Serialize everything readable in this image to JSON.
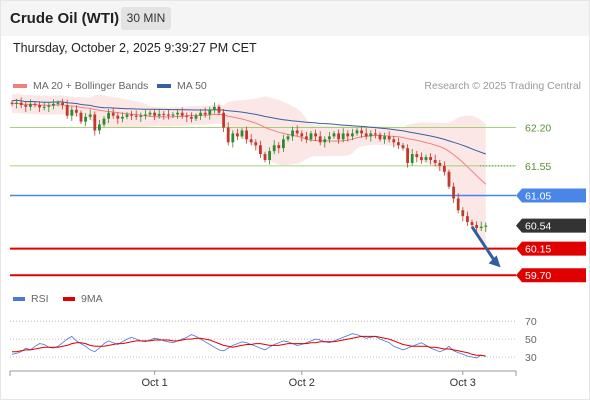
{
  "header": {
    "title": "Crude Oil (WTI)",
    "interval": "30 MIN",
    "datetime": "Thursday, October 2, 2025 9:39:27 PM CET"
  },
  "legend": {
    "ma20_label": "MA 20 + Bollinger Bands",
    "ma50_label": "MA 50",
    "credit": "Research © 2025 Trading Central",
    "rsi_label": "RSI",
    "rsi_ma_label": "9MA"
  },
  "colors": {
    "ma20": "#f08080",
    "ma50": "#3a5fa0",
    "bollinger_fill": "#fbe3e3",
    "candle_up": "#2e8b2e",
    "candle_down": "#c0392b",
    "resistance_green": "#8bc34a",
    "pivot_blue": "#4a86e8",
    "current_price": "#333333",
    "support_red": "#e00000",
    "arrow": "#2f5f9f",
    "rsi": "#4a78d6",
    "rsi_ma": "#e00000"
  },
  "chart_data": {
    "type": "candlestick",
    "ylim": [
      59.45,
      62.75
    ],
    "levels": [
      {
        "value": 62.2,
        "label": "62.20",
        "style": "green-line"
      },
      {
        "value": 61.55,
        "label": "61.55",
        "style": "green-line"
      },
      {
        "value": 61.05,
        "label": "61.05",
        "style": "blue-tag"
      },
      {
        "value": 60.54,
        "label": "60.54",
        "style": "current-price-tag"
      },
      {
        "value": 60.15,
        "label": "60.15",
        "style": "red-tag"
      },
      {
        "value": 59.7,
        "label": "59.70",
        "style": "red-tag"
      }
    ],
    "close_prices": [
      62.6,
      62.62,
      62.58,
      62.55,
      62.6,
      62.58,
      62.54,
      62.55,
      62.57,
      62.6,
      62.62,
      62.58,
      62.4,
      62.5,
      62.45,
      62.3,
      62.38,
      62.42,
      62.15,
      62.25,
      62.35,
      62.45,
      62.4,
      62.35,
      62.38,
      62.42,
      62.4,
      62.38,
      62.4,
      62.42,
      62.45,
      62.4,
      62.43,
      62.42,
      62.4,
      62.42,
      62.45,
      62.4,
      62.38,
      62.35,
      62.4,
      62.45,
      62.42,
      62.5,
      62.55,
      62.45,
      62.2,
      61.95,
      62.1,
      62.05,
      62.15,
      62.0,
      61.95,
      61.9,
      61.75,
      61.65,
      61.8,
      61.9,
      61.85,
      62.0,
      62.05,
      62.15,
      62.1,
      62.05,
      62.0,
      62.1,
      62.05,
      61.95,
      62.0,
      62.05,
      62.1,
      62.0,
      62.1,
      62.05,
      62.1,
      62.15,
      62.1,
      62.05,
      62.1,
      62.08,
      62.0,
      62.05,
      62.0,
      61.95,
      61.9,
      61.85,
      61.6,
      61.75,
      61.7,
      61.65,
      61.7,
      61.65,
      61.6,
      61.55,
      61.45,
      61.2,
      61.0,
      60.8,
      60.7,
      60.6,
      60.55,
      60.5,
      60.52,
      60.54
    ],
    "x_ticks": [
      {
        "label": "Oct 1",
        "index": 31
      },
      {
        "label": "Oct 2",
        "index": 63
      },
      {
        "label": "Oct 3",
        "index": 98
      }
    ],
    "forecast_arrow": {
      "from_index": 100,
      "from_value": 60.52,
      "to_index": 106,
      "to_value": 59.85
    },
    "rsi": {
      "ylim": [
        20,
        78
      ],
      "levels": [
        70,
        50,
        30
      ],
      "values": [
        33,
        34,
        36,
        40,
        38,
        42,
        45,
        44,
        41,
        40,
        42,
        46,
        50,
        53,
        48,
        45,
        42,
        38,
        36,
        40,
        45,
        48,
        46,
        44,
        47,
        50,
        52,
        50,
        48,
        47,
        49,
        51,
        50,
        48,
        47,
        46,
        48,
        50,
        52,
        55,
        53,
        50,
        47,
        44,
        41,
        38,
        37,
        40,
        43,
        45,
        47,
        46,
        44,
        42,
        40,
        38,
        41,
        44,
        46,
        48,
        47,
        45,
        43,
        44,
        46,
        48,
        50,
        49,
        47,
        46,
        48,
        50,
        52,
        54,
        56,
        55,
        53,
        51,
        52,
        53,
        50,
        48,
        46,
        42,
        40,
        38,
        40,
        42,
        44,
        46,
        43,
        40,
        38,
        36,
        38,
        42,
        37,
        35,
        33,
        31,
        30,
        29,
        32,
        31
      ],
      "ma_values": [
        36,
        36,
        37,
        38,
        38,
        39,
        40,
        41,
        41,
        41,
        41,
        42,
        43,
        45,
        46,
        46,
        45,
        43,
        42,
        42,
        42,
        43,
        44,
        45,
        45,
        46,
        47,
        48,
        48,
        48,
        48,
        49,
        49,
        49,
        49,
        48,
        48,
        49,
        50,
        50,
        51,
        51,
        50,
        49,
        47,
        45,
        43,
        42,
        41,
        42,
        43,
        44,
        44,
        45,
        45,
        44,
        43,
        43,
        43,
        44,
        45,
        45,
        45,
        45,
        45,
        46,
        46,
        47,
        47,
        47,
        47,
        48,
        49,
        50,
        51,
        52,
        53,
        53,
        53,
        53,
        52,
        51,
        50,
        48,
        46,
        44,
        43,
        42,
        42,
        42,
        42,
        41,
        41,
        40,
        39,
        39,
        38,
        37,
        36,
        35,
        33,
        32,
        32,
        31
      ]
    }
  }
}
